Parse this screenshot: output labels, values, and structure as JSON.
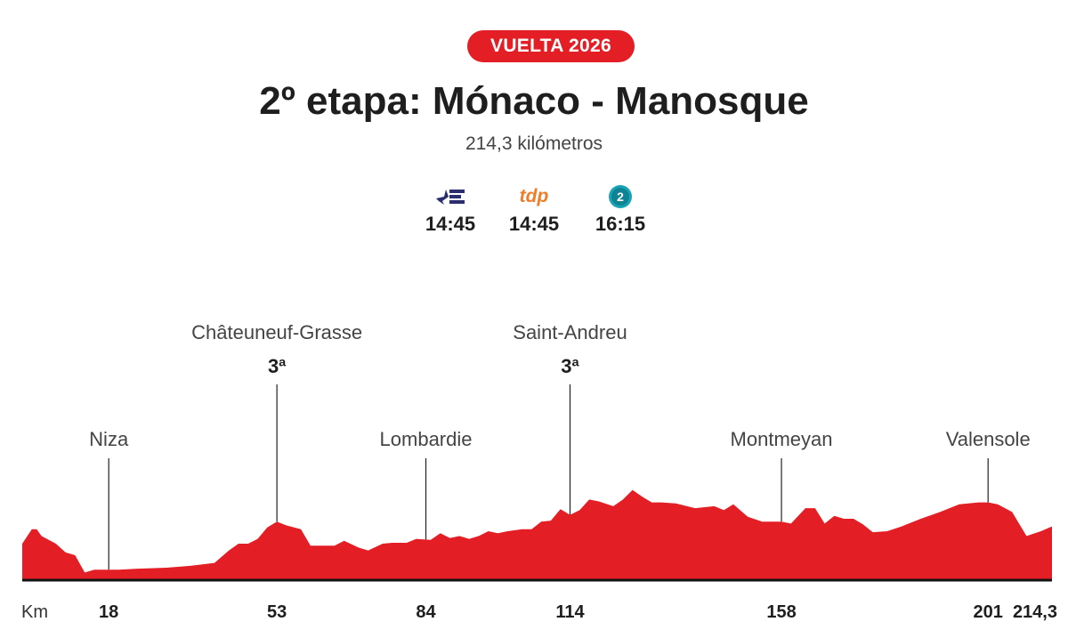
{
  "header": {
    "badge": "VUELTA 2026",
    "title": "2º etapa: Mónaco - Manosque",
    "distance": "214,3 kilómetros"
  },
  "broadcasts": [
    {
      "logo": "eurosport-logo",
      "time": "14:45"
    },
    {
      "logo": "tdp-logo",
      "label": "tdp",
      "time": "14:45"
    },
    {
      "logo": "la2-logo",
      "label": "2",
      "time": "16:15"
    }
  ],
  "colors": {
    "accent": "#e31e24",
    "profile_fill": "#e31e24",
    "eurosport": "#2b2e6e",
    "tdp": "#ee7d2a",
    "la2": "#1aa3b5"
  },
  "chart_data": {
    "type": "area",
    "title": "2º etapa: Mónaco - Manosque",
    "x_axis_label": "Km",
    "xlim": [
      0,
      214.3
    ],
    "x_ticks": [
      {
        "value": 18,
        "label": "18"
      },
      {
        "value": 53,
        "label": "53"
      },
      {
        "value": 84,
        "label": "84"
      },
      {
        "value": 114,
        "label": "114"
      },
      {
        "value": 158,
        "label": "158"
      },
      {
        "value": 201,
        "label": "201"
      },
      {
        "value": 214.3,
        "label": "214,3"
      }
    ],
    "landmarks": [
      {
        "name": "Niza",
        "km": 18,
        "category": ""
      },
      {
        "name": "Châteuneuf-Grasse",
        "km": 53,
        "category": "3ª"
      },
      {
        "name": "Lombardie",
        "km": 84,
        "category": ""
      },
      {
        "name": "Saint-Andreu",
        "km": 114,
        "category": "3ª"
      },
      {
        "name": "Montmeyan",
        "km": 158,
        "category": ""
      },
      {
        "name": "Valensole",
        "km": 201,
        "category": ""
      }
    ],
    "profile_relative_height": {
      "x": [
        0,
        2,
        3,
        4,
        7,
        9,
        11,
        13,
        15,
        17,
        20,
        24,
        30,
        35,
        40,
        43,
        45,
        47,
        49,
        51,
        53,
        55,
        58,
        60,
        62,
        65,
        67,
        70,
        72,
        75,
        77,
        80,
        82,
        85,
        87,
        89,
        91,
        93,
        95,
        97,
        99,
        101,
        104,
        106,
        108,
        110,
        112,
        114,
        116,
        118,
        120,
        123,
        125,
        127,
        129,
        131,
        133,
        136,
        140,
        144,
        146,
        148,
        151,
        154,
        158,
        160,
        163,
        165,
        167,
        169,
        171,
        173,
        175,
        177,
        180,
        183,
        187,
        191,
        195,
        199,
        201,
        203,
        206,
        209,
        212,
        214.3
      ],
      "y": [
        0.37,
        0.52,
        0.52,
        0.45,
        0.37,
        0.28,
        0.25,
        0.07,
        0.1,
        0.1,
        0.1,
        0.11,
        0.12,
        0.14,
        0.17,
        0.3,
        0.37,
        0.37,
        0.42,
        0.54,
        0.6,
        0.56,
        0.52,
        0.35,
        0.35,
        0.35,
        0.4,
        0.33,
        0.3,
        0.37,
        0.38,
        0.38,
        0.42,
        0.41,
        0.48,
        0.43,
        0.45,
        0.42,
        0.45,
        0.5,
        0.48,
        0.5,
        0.52,
        0.52,
        0.6,
        0.61,
        0.73,
        0.67,
        0.72,
        0.83,
        0.81,
        0.76,
        0.83,
        0.93,
        0.86,
        0.8,
        0.8,
        0.79,
        0.74,
        0.76,
        0.72,
        0.78,
        0.65,
        0.6,
        0.6,
        0.58,
        0.74,
        0.74,
        0.58,
        0.66,
        0.63,
        0.63,
        0.57,
        0.49,
        0.5,
        0.55,
        0.63,
        0.7,
        0.78,
        0.8,
        0.8,
        0.78,
        0.7,
        0.45,
        0.5,
        0.55
      ]
    }
  }
}
